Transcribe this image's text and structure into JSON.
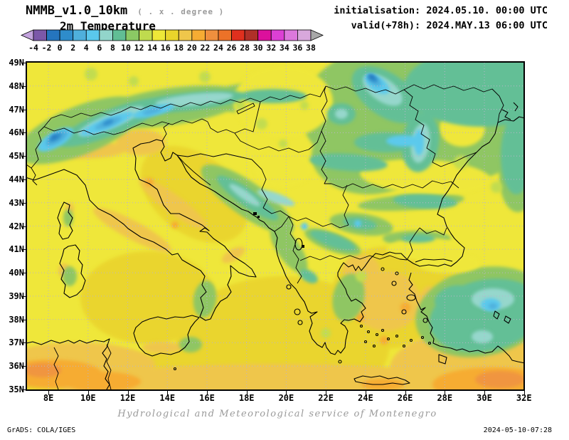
{
  "header": {
    "model_title": "NMMB_v1.0_10km",
    "resolution_note": "( . x . degree )",
    "field_title": "2m Temperature",
    "initialisation": "initialisation: 2024.05.10. 00:00 UTC",
    "valid": "valid(+78h): 2024.MAY.13 06:00 UTC"
  },
  "colorbar": {
    "tick_values": [
      "-4",
      "-2",
      "0",
      "2",
      "4",
      "6",
      "8",
      "10",
      "12",
      "14",
      "16",
      "18",
      "20",
      "22",
      "24",
      "26",
      "28",
      "30",
      "32",
      "34",
      "36",
      "38"
    ],
    "cell_colors": [
      "#7C58A9",
      "#2575BE",
      "#2E8CCB",
      "#4FB0DC",
      "#5AC8EC",
      "#92D5CA",
      "#61BE95",
      "#8BC964",
      "#BFDB4E",
      "#EEE838",
      "#E9D42B",
      "#EFC64B",
      "#F6AC33",
      "#EF8F3E",
      "#EC7228",
      "#E0301E",
      "#B03028",
      "#DC109C",
      "#DC40D4",
      "#DC78DC",
      "#D8A8DC"
    ],
    "below_min_color": "#C3A3DD",
    "above_max_color": "#A8A8A8"
  },
  "map": {
    "lat_labels": [
      "49N",
      "48N",
      "47N",
      "46N",
      "45N",
      "44N",
      "43N",
      "42N",
      "41N",
      "40N",
      "39N",
      "38N",
      "37N",
      "36N",
      "35N"
    ],
    "lon_labels": [
      "8E",
      "10E",
      "12E",
      "14E",
      "16E",
      "18E",
      "20E",
      "22E",
      "24E",
      "26E",
      "28E",
      "30E",
      "32E"
    ],
    "grid_color": "#b9b3cc"
  },
  "chart_data": {
    "type": "heatmap",
    "title": "2m Temperature",
    "scale_ticks": [
      -4,
      -2,
      0,
      2,
      4,
      6,
      8,
      10,
      12,
      14,
      16,
      18,
      20,
      22,
      24,
      26,
      28,
      30,
      32,
      34,
      36,
      38
    ],
    "lat_range": [
      35,
      49
    ],
    "lon_range": [
      7,
      32
    ],
    "grid": true,
    "legend_position": "top"
  },
  "footer": {
    "credit": "Hydrological and Meteorological service of Montenegro",
    "generator": "GrADS: COLA/IGES",
    "created": "2024-05-10-07:28"
  }
}
